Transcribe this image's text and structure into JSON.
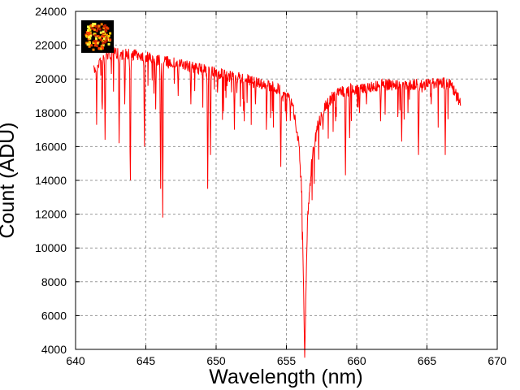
{
  "chart_data": {
    "type": "line",
    "xlabel": "Wavelength (nm)",
    "ylabel": "Count (ADU)",
    "xlim": [
      640,
      670
    ],
    "ylim": [
      4000,
      24000
    ],
    "xticks": [
      640,
      645,
      650,
      655,
      660,
      665,
      670
    ],
    "yticks": [
      4000,
      6000,
      8000,
      10000,
      12000,
      14000,
      16000,
      18000,
      20000,
      22000,
      24000
    ],
    "grid": true,
    "series_color": "#ff0000",
    "continuum": {
      "x": [
        641.3,
        641.8,
        642.5,
        643.5,
        644.5,
        645.5,
        647,
        648.5,
        650,
        651,
        652,
        653,
        654,
        655,
        655.5,
        655.9,
        656.1,
        656.3,
        656.5,
        656.8,
        657.2,
        657.8,
        658.5,
        660,
        662,
        664,
        666,
        666.7,
        667.4
      ],
      "y": [
        20800,
        21500,
        21900,
        21800,
        21800,
        21500,
        21300,
        21000,
        20700,
        20500,
        20300,
        20100,
        19900,
        19500,
        18600,
        16500,
        13500,
        4100,
        12000,
        15500,
        17500,
        18800,
        19500,
        19800,
        20000,
        20000,
        20100,
        20100,
        18900
      ]
    },
    "absorption_lines": {
      "x": [
        641.5,
        641.9,
        642.1,
        643.1,
        643.5,
        643.9,
        644.9,
        645.7,
        646.05,
        646.2,
        647.3,
        648.2,
        649.4,
        649.6,
        650.1,
        651.3,
        652.0,
        652.8,
        653.6,
        654.6,
        655.0,
        657.0,
        657.6,
        658.5,
        659.2,
        659.5,
        660.2,
        660.7,
        661.7,
        663.2,
        664.4,
        665.3,
        666.3
      ],
      "y": [
        19000,
        18200,
        16400,
        16200,
        18500,
        14000,
        16000,
        18200,
        13500,
        11800,
        19000,
        18500,
        13500,
        15500,
        19200,
        17000,
        17500,
        18500,
        18000,
        14800,
        17500,
        16500,
        17000,
        17500,
        14300,
        16500,
        18000,
        18500,
        17500,
        16300,
        15500,
        18500,
        15500
      ]
    }
  },
  "logo": {
    "colors": [
      "#ff4000",
      "#ff8000",
      "#ffd000",
      "#ffff40",
      "#c02000",
      "#ffffff"
    ]
  }
}
